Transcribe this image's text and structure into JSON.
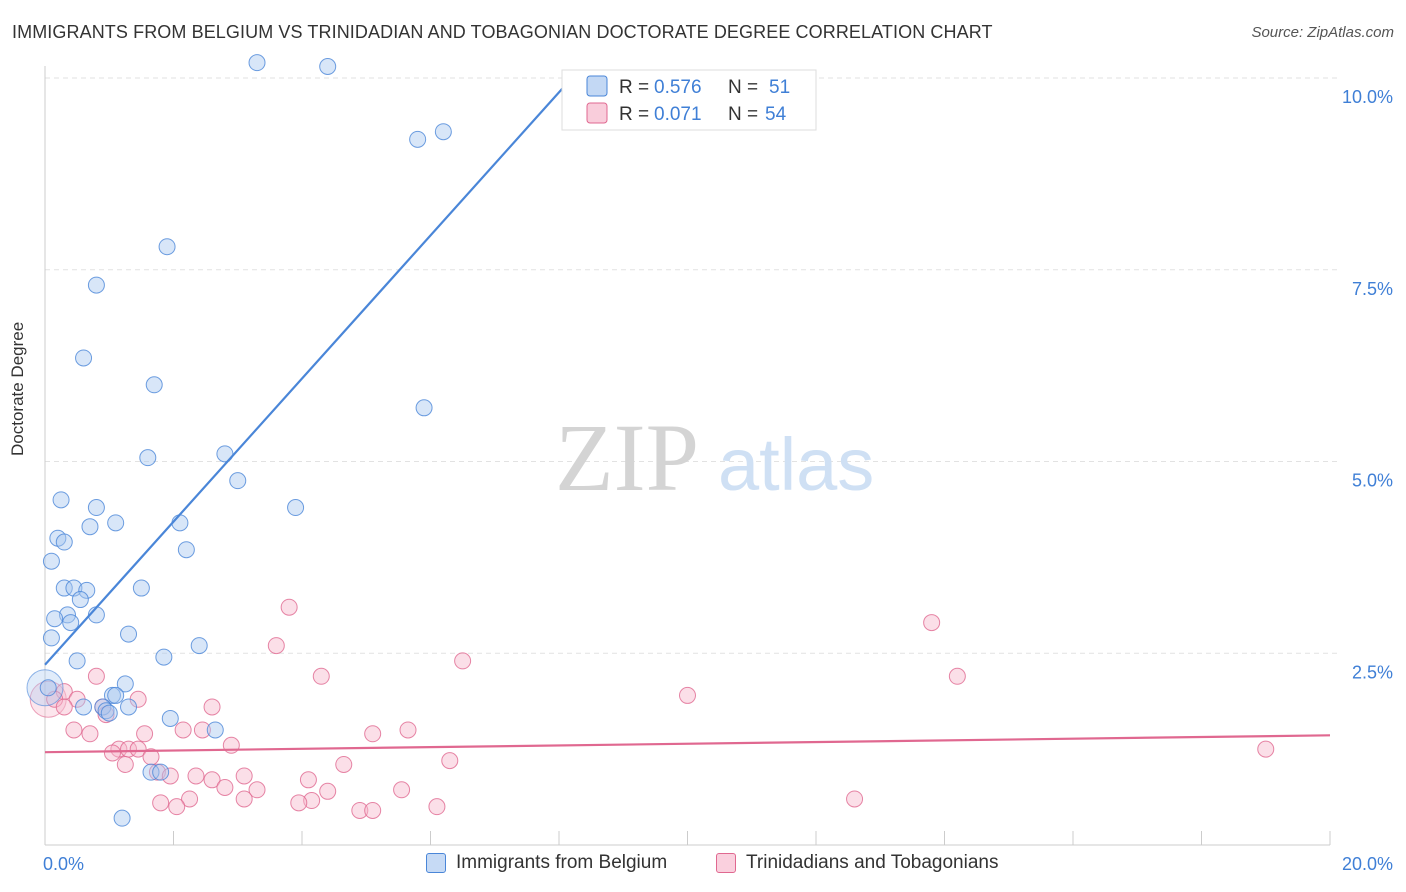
{
  "title": "IMMIGRANTS FROM BELGIUM VS TRINIDADIAN AND TOBAGONIAN DOCTORATE DEGREE CORRELATION CHART",
  "source": "Source: ZipAtlas.com",
  "watermark": {
    "zip": "ZIP",
    "atlas": "atlas"
  },
  "colors": {
    "blue": "#4a86d8",
    "blue_fill": "#a9c8f0",
    "pink": "#e06890",
    "pink_fill": "#f6b8cc",
    "value_blue": "#3f7fd6",
    "grid": "#e2e2e2"
  },
  "chart_data": {
    "type": "scatter",
    "ylabel": "Doctorate Degree",
    "xlabel": "",
    "xlim": [
      0,
      20
    ],
    "ylim": [
      0,
      10
    ],
    "x_tick_labels": [
      "0.0%",
      "20.0%"
    ],
    "y_ticks": [
      2.5,
      5.0,
      7.5,
      10.0
    ],
    "y_tick_labels": [
      "2.5%",
      "5.0%",
      "7.5%",
      "10.0%"
    ],
    "legend": [
      {
        "name": "Immigrants from Belgium",
        "r_label": "R =",
        "r": "0.576",
        "n_label": "N =",
        "n": "51"
      },
      {
        "name": "Trinidadians and Tobagonians",
        "r_label": "R =",
        "r": "0.071",
        "n_label": "N =",
        "n": "54"
      }
    ],
    "series": [
      {
        "name": "Immigrants from Belgium",
        "trend": {
          "x0": 0.0,
          "y0": 2.35,
          "x1": 8.2,
          "y1": 10.0
        },
        "points": [
          [
            3.3,
            10.2
          ],
          [
            4.4,
            10.15
          ],
          [
            5.8,
            9.2
          ],
          [
            6.2,
            9.3
          ],
          [
            1.9,
            7.8
          ],
          [
            0.8,
            7.3
          ],
          [
            0.6,
            6.35
          ],
          [
            1.7,
            6.0
          ],
          [
            5.9,
            5.7
          ],
          [
            1.6,
            5.05
          ],
          [
            2.8,
            5.1
          ],
          [
            3.0,
            4.75
          ],
          [
            0.25,
            4.5
          ],
          [
            0.8,
            4.4
          ],
          [
            3.9,
            4.4
          ],
          [
            0.7,
            4.15
          ],
          [
            1.1,
            4.2
          ],
          [
            2.1,
            4.2
          ],
          [
            0.2,
            4.0
          ],
          [
            0.3,
            3.95
          ],
          [
            2.2,
            3.85
          ],
          [
            0.1,
            3.7
          ],
          [
            0.3,
            3.35
          ],
          [
            0.45,
            3.35
          ],
          [
            0.65,
            3.32
          ],
          [
            1.5,
            3.35
          ],
          [
            0.55,
            3.2
          ],
          [
            0.35,
            3.0
          ],
          [
            0.8,
            3.0
          ],
          [
            0.15,
            2.95
          ],
          [
            0.4,
            2.9
          ],
          [
            1.3,
            2.75
          ],
          [
            0.1,
            2.7
          ],
          [
            2.4,
            2.6
          ],
          [
            1.85,
            2.45
          ],
          [
            0.5,
            2.4
          ],
          [
            1.25,
            2.1
          ],
          [
            0.05,
            2.05
          ],
          [
            1.05,
            1.95
          ],
          [
            1.1,
            1.95
          ],
          [
            0.6,
            1.8
          ],
          [
            0.9,
            1.8
          ],
          [
            1.3,
            1.8
          ],
          [
            0.95,
            1.75
          ],
          [
            1.0,
            1.72
          ],
          [
            1.95,
            1.65
          ],
          [
            2.65,
            1.5
          ],
          [
            1.65,
            0.95
          ],
          [
            1.8,
            0.95
          ],
          [
            1.2,
            0.35
          ]
        ],
        "big_point": [
          0.0,
          2.05
        ]
      },
      {
        "name": "Trinidadians and Tobagonians",
        "trend": {
          "x0": 0.0,
          "y0": 1.21,
          "x1": 20.0,
          "y1": 1.43
        },
        "points": [
          [
            3.8,
            3.1
          ],
          [
            13.8,
            2.9
          ],
          [
            3.6,
            2.6
          ],
          [
            6.5,
            2.4
          ],
          [
            4.3,
            2.2
          ],
          [
            14.2,
            2.2
          ],
          [
            0.8,
            2.2
          ],
          [
            0.3,
            2.0
          ],
          [
            0.5,
            1.9
          ],
          [
            10.0,
            1.95
          ],
          [
            0.15,
            1.9
          ],
          [
            1.45,
            1.9
          ],
          [
            0.3,
            1.8
          ],
          [
            0.9,
            1.8
          ],
          [
            2.6,
            1.8
          ],
          [
            0.95,
            1.7
          ],
          [
            0.45,
            1.5
          ],
          [
            0.7,
            1.45
          ],
          [
            2.15,
            1.5
          ],
          [
            2.45,
            1.5
          ],
          [
            5.1,
            1.45
          ],
          [
            5.65,
            1.5
          ],
          [
            1.55,
            1.45
          ],
          [
            1.15,
            1.25
          ],
          [
            1.3,
            1.25
          ],
          [
            1.45,
            1.25
          ],
          [
            2.9,
            1.3
          ],
          [
            1.05,
            1.2
          ],
          [
            1.65,
            1.15
          ],
          [
            6.3,
            1.1
          ],
          [
            1.25,
            1.05
          ],
          [
            4.65,
            1.05
          ],
          [
            1.75,
            0.95
          ],
          [
            1.95,
            0.9
          ],
          [
            2.35,
            0.9
          ],
          [
            3.1,
            0.9
          ],
          [
            4.1,
            0.85
          ],
          [
            2.6,
            0.85
          ],
          [
            2.8,
            0.75
          ],
          [
            3.3,
            0.72
          ],
          [
            4.4,
            0.7
          ],
          [
            5.55,
            0.72
          ],
          [
            2.25,
            0.6
          ],
          [
            12.6,
            0.6
          ],
          [
            1.8,
            0.55
          ],
          [
            3.1,
            0.6
          ],
          [
            4.15,
            0.58
          ],
          [
            3.95,
            0.55
          ],
          [
            2.05,
            0.5
          ],
          [
            6.1,
            0.5
          ],
          [
            4.9,
            0.45
          ],
          [
            5.1,
            0.45
          ],
          [
            19.0,
            1.25
          ]
        ],
        "big_point": [
          0.05,
          1.9
        ]
      }
    ]
  }
}
